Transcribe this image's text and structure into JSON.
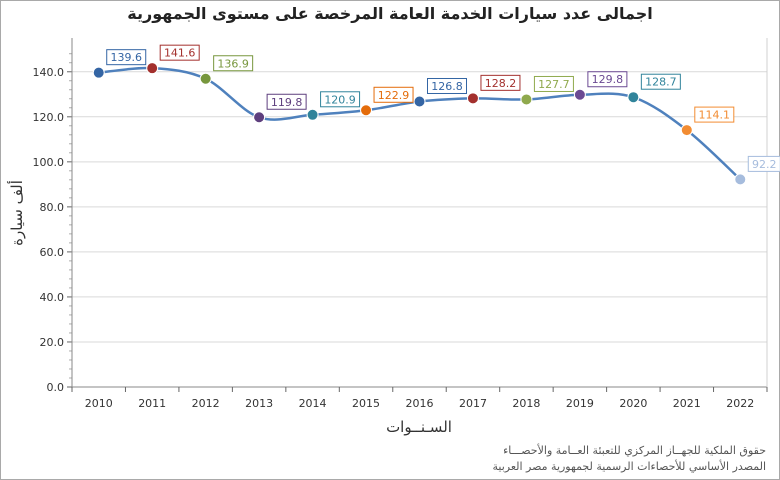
{
  "chart_data": {
    "type": "line",
    "title": "اجمالى عدد سيارات الخدمة العامة المرخصة على مستوى الجمهورية",
    "xlabel": "السـنــوات",
    "ylabel": "ألف سيارة",
    "categories": [
      "2010",
      "2011",
      "2012",
      "2013",
      "2014",
      "2015",
      "2016",
      "2017",
      "2018",
      "2019",
      "2020",
      "2021",
      "2022"
    ],
    "values": [
      139.6,
      141.6,
      136.9,
      119.8,
      120.9,
      122.9,
      126.8,
      128.2,
      127.7,
      129.8,
      128.7,
      114.1,
      92.2
    ],
    "point_colors": [
      "#3465a4",
      "#a3302d",
      "#77973d",
      "#5e3f7e",
      "#31849b",
      "#e46c0a",
      "#3465a4",
      "#a3302d",
      "#8fa94d",
      "#6b4a93",
      "#31849b",
      "#f28c32",
      "#a6bcdd"
    ],
    "ylim": [
      0,
      155
    ],
    "yticks": [
      0,
      20,
      40,
      60,
      80,
      100,
      120,
      140
    ],
    "ytick_labels": [
      "0.0",
      "20.0",
      "40.0",
      "60.0",
      "80.0",
      "100.0",
      "120.0",
      "140.0"
    ],
    "line_color": "#4f81bd",
    "smooth": true,
    "grid": true,
    "data_labels": true
  },
  "credits": {
    "line1": "حقوق الملكية للجهــاز المركزي للتعبئة العــامة والأحصـــاء",
    "line2": "المصدر الأساسي للأحصاءات الرسمية لجمهورية مصر العربية"
  }
}
